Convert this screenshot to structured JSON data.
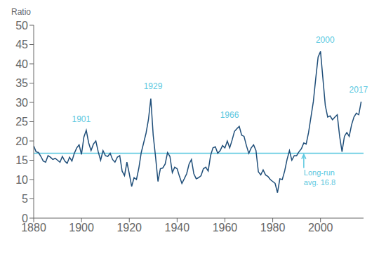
{
  "chart_data": {
    "type": "line",
    "ylabel": "Ratio",
    "x": [
      1880,
      1881,
      1882,
      1883,
      1884,
      1885,
      1886,
      1887,
      1888,
      1889,
      1890,
      1891,
      1892,
      1893,
      1894,
      1895,
      1896,
      1897,
      1898,
      1899,
      1900,
      1901,
      1902,
      1903,
      1904,
      1905,
      1906,
      1907,
      1908,
      1909,
      1910,
      1911,
      1912,
      1913,
      1914,
      1915,
      1916,
      1917,
      1918,
      1919,
      1920,
      1921,
      1922,
      1923,
      1924,
      1925,
      1926,
      1927,
      1928,
      1929,
      1930,
      1931,
      1932,
      1933,
      1934,
      1935,
      1936,
      1937,
      1938,
      1939,
      1940,
      1941,
      1942,
      1943,
      1944,
      1945,
      1946,
      1947,
      1948,
      1949,
      1950,
      1951,
      1952,
      1953,
      1954,
      1955,
      1956,
      1957,
      1958,
      1959,
      1960,
      1961,
      1962,
      1963,
      1964,
      1965,
      1966,
      1967,
      1968,
      1969,
      1970,
      1971,
      1972,
      1973,
      1974,
      1975,
      1976,
      1977,
      1978,
      1979,
      1980,
      1981,
      1982,
      1983,
      1984,
      1985,
      1986,
      1987,
      1988,
      1989,
      1990,
      1991,
      1992,
      1993,
      1994,
      1995,
      1996,
      1997,
      1998,
      1999,
      2000,
      2001,
      2002,
      2003,
      2004,
      2005,
      2006,
      2007,
      2008,
      2009,
      2010,
      2011,
      2012,
      2013,
      2014,
      2015,
      2016,
      2017
    ],
    "values": [
      18.7,
      17.2,
      17.0,
      16.0,
      14.8,
      14.5,
      16.2,
      15.8,
      15.2,
      15.5,
      15.0,
      14.5,
      16.0,
      14.8,
      14.2,
      15.8,
      14.8,
      16.8,
      18.2,
      19.0,
      16.5,
      21.0,
      22.8,
      19.5,
      17.5,
      19.2,
      20.0,
      17.2,
      15.0,
      17.5,
      16.2,
      16.0,
      16.8,
      15.2,
      14.5,
      15.8,
      16.2,
      12.2,
      11.0,
      14.5,
      11.5,
      8.2,
      10.5,
      10.0,
      13.0,
      17.0,
      19.5,
      22.0,
      25.5,
      31.0,
      21.5,
      15.8,
      9.5,
      12.8,
      13.0,
      14.0,
      17.0,
      16.0,
      11.8,
      13.2,
      12.8,
      10.8,
      9.0,
      10.2,
      11.5,
      14.0,
      15.2,
      11.5,
      10.2,
      10.5,
      11.0,
      12.8,
      13.2,
      12.2,
      16.2,
      18.2,
      18.5,
      16.8,
      17.5,
      18.8,
      18.2,
      20.0,
      18.2,
      20.2,
      22.5,
      23.2,
      23.8,
      21.5,
      21.2,
      18.8,
      16.8,
      18.2,
      19.0,
      17.5,
      12.0,
      11.2,
      12.5,
      11.2,
      10.8,
      10.0,
      9.5,
      9.0,
      6.6,
      10.2,
      10.0,
      12.2,
      15.2,
      17.5,
      15.0,
      16.2,
      16.2,
      17.2,
      18.0,
      19.5,
      19.2,
      22.2,
      26.2,
      30.2,
      36.2,
      41.8,
      43.2,
      36.2,
      29.2,
      26.2,
      26.5,
      25.5,
      26.2,
      26.8,
      21.2,
      17.2,
      21.2,
      22.2,
      21.2,
      24.2,
      26.2,
      27.2,
      26.8,
      30.2
    ],
    "color": "#1f4e79",
    "xlim": [
      1880,
      2018
    ],
    "ylim": [
      0,
      50
    ],
    "xticks": [
      1880,
      1900,
      1920,
      1940,
      1960,
      1980,
      2000
    ],
    "yticks": [
      0,
      5,
      10,
      15,
      20,
      25,
      30,
      35,
      40,
      45,
      50
    ],
    "grid": false,
    "reference_lines": [
      {
        "y": 16.8,
        "color": "#5bc8e0"
      }
    ],
    "annotations": [
      {
        "text": "1901",
        "x": 1896,
        "y": 25.0,
        "color": "#5bc8e0"
      },
      {
        "text": "1929",
        "x": 1926,
        "y": 33.5,
        "color": "#5bc8e0"
      },
      {
        "text": "1966",
        "x": 1958,
        "y": 26.0,
        "color": "#5bc8e0"
      },
      {
        "text": "2000",
        "x": 1998,
        "y": 45.5,
        "color": "#5bc8e0"
      },
      {
        "text": "2017",
        "x": 2012,
        "y": 32.5,
        "color": "#5bc8e0"
      },
      {
        "text": "Long-run\navg. 16.8",
        "x": 1993,
        "y": 12.5,
        "color": "#5bc8e0",
        "arrow": {
          "x": 1993,
          "from": 13.0,
          "to": 16.5
        }
      }
    ]
  }
}
